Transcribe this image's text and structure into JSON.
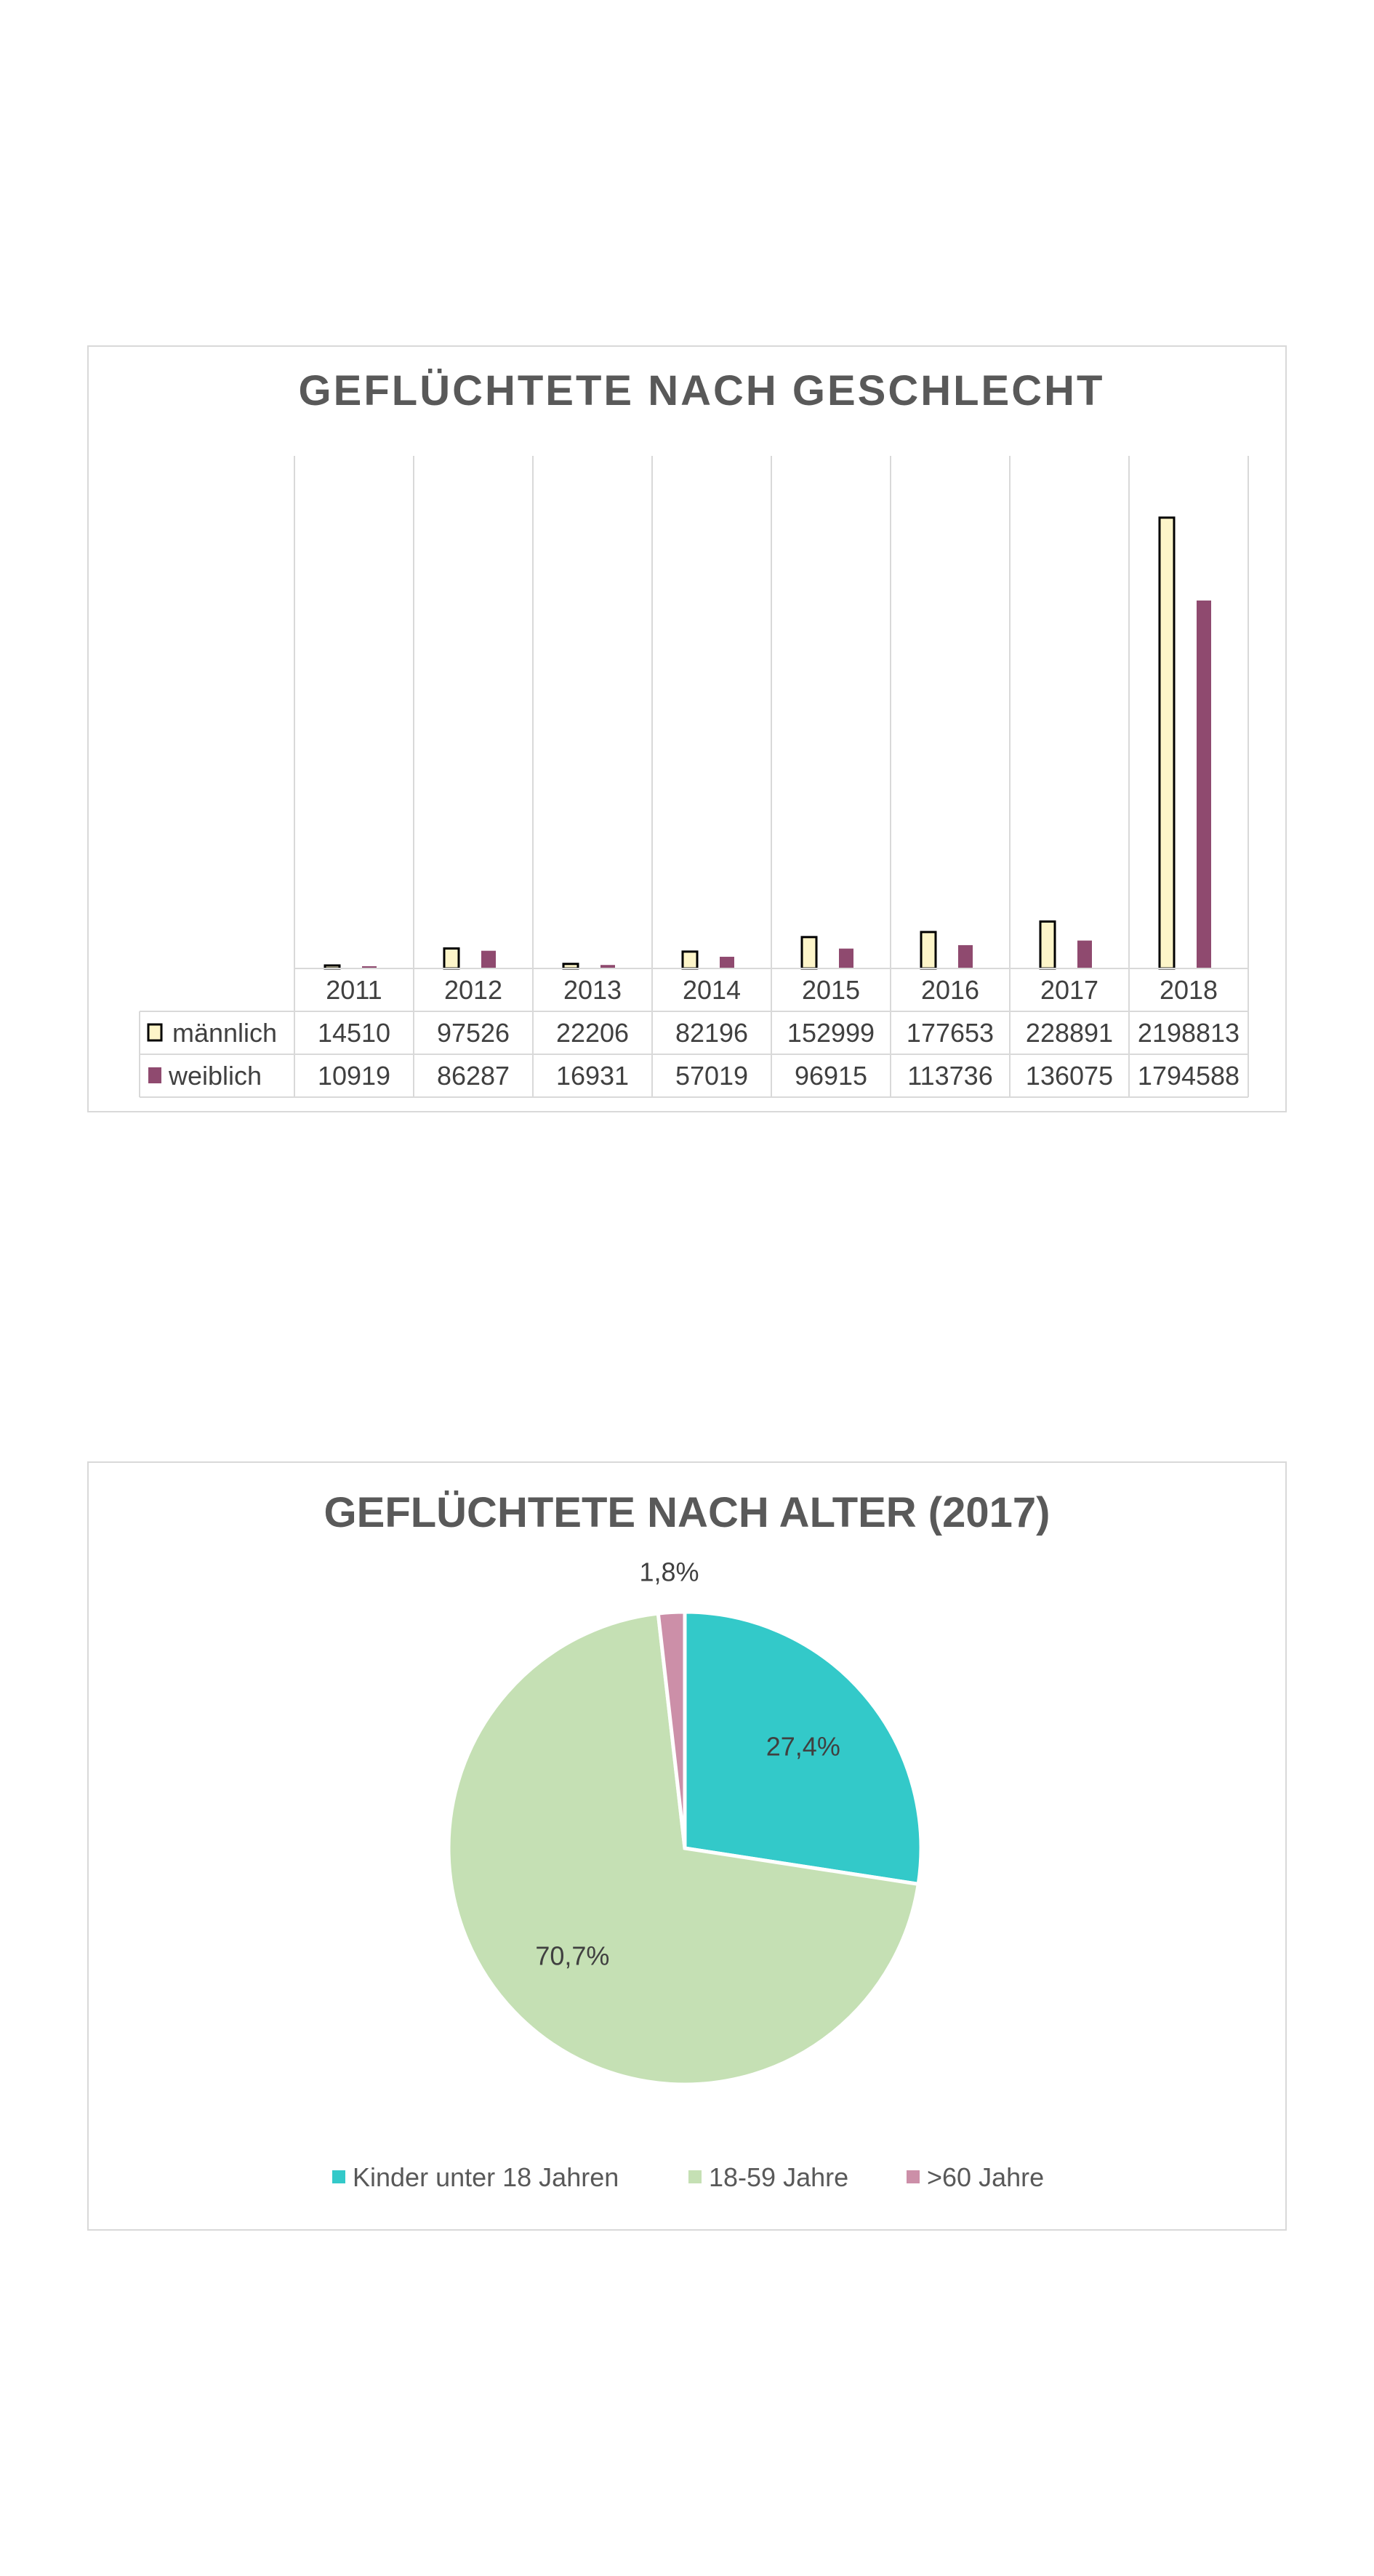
{
  "chart_data": [
    {
      "type": "bar",
      "title": "GEFLÜCHTETE NACH GESCHLECHT",
      "categories": [
        "2011",
        "2012",
        "2013",
        "2014",
        "2015",
        "2016",
        "2017",
        "2018"
      ],
      "series": [
        {
          "name": "männlich",
          "values": [
            14510,
            97526,
            22206,
            82196,
            152999,
            177653,
            228891,
            2198813
          ]
        },
        {
          "name": "weiblich",
          "values": [
            10919,
            86287,
            16931,
            57019,
            96915,
            113736,
            136075,
            1794588
          ]
        }
      ],
      "ylim": [
        0,
        2500000
      ],
      "data_table": true,
      "grid": "vertical",
      "colors": {
        "männlich": "#fdf5c9",
        "weiblich": "#8f4a6f",
        "outline": "#000000"
      }
    },
    {
      "type": "pie",
      "title": "GEFLÜCHTETE NACH ALTER (2017)",
      "slices": [
        {
          "name": "Kinder unter 18 Jahren",
          "value": 27.4,
          "label": "27,4%",
          "color": "#33c9c9"
        },
        {
          "name": "18-59 Jahre",
          "value": 70.7,
          "label": "70,7%",
          "color": "#c5e0b4"
        },
        {
          "name": ">60 Jahre",
          "value": 1.8,
          "label": "1,8%",
          "color": "#cc8fa8"
        }
      ],
      "legend": "bottom"
    }
  ]
}
